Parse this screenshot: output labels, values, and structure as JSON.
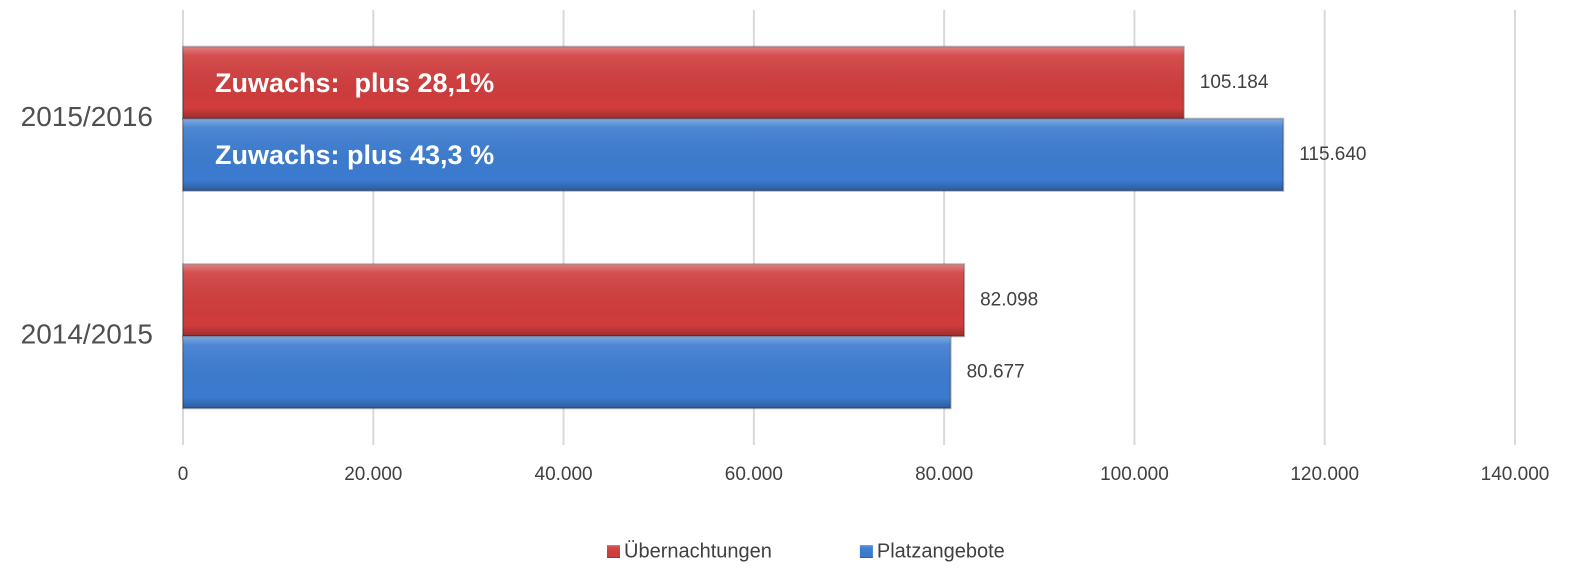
{
  "chart_data": {
    "type": "hbar",
    "categories": [
      "2014/2015",
      "2015/2016"
    ],
    "series": [
      {
        "name": "Übernachtungen",
        "color": "#d03c3c",
        "values": [
          82098,
          105184
        ],
        "value_labels": [
          "82.098",
          "105.184"
        ]
      },
      {
        "name": "Platzangebote",
        "color": "#3b7bd0",
        "values": [
          80677,
          115640
        ],
        "value_labels": [
          "80.677",
          "115.640"
        ]
      }
    ],
    "annotations": [
      "Zuwachs:  plus 28,1%",
      "Zuwachs: plus 43,3 %"
    ],
    "xlim": [
      0,
      140000
    ],
    "xticks": [
      0,
      {
        "value": 20000,
        "label": "20.000"
      },
      {
        "value": 40000,
        "label": "40.000"
      },
      {
        "value": 60000,
        "label": "60.000"
      },
      {
        "value": 80000,
        "label": "80.000"
      },
      {
        "value": 100000,
        "label": "100.000"
      },
      {
        "value": 120000,
        "label": "120.000"
      },
      {
        "value": 140000,
        "label": "140.000"
      }
    ],
    "grid": true,
    "legend": "bottom"
  }
}
